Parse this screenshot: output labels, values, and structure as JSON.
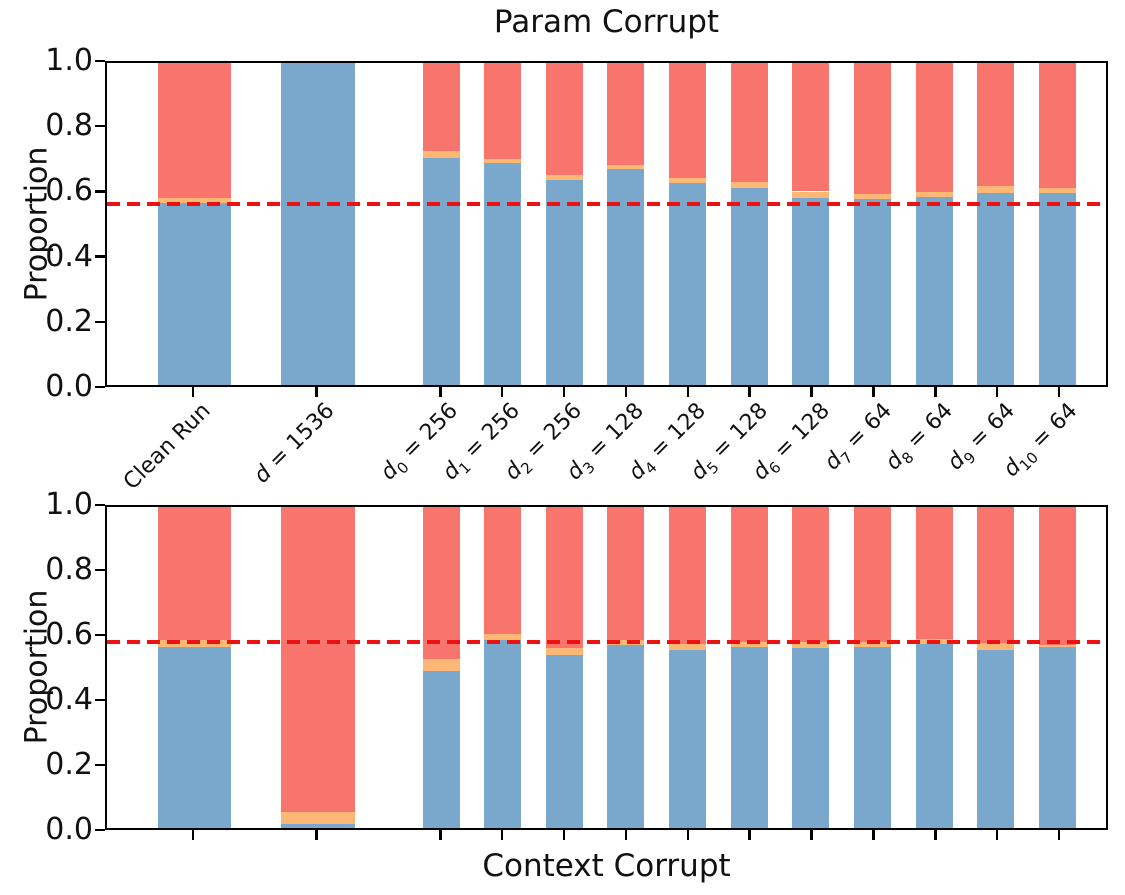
{
  "figure_bg": "#ffffff",
  "colors": {
    "blue": "#7aa7cc",
    "orange": "#fdb876",
    "red": "#f7756c",
    "dashed_line": "#ee1111",
    "axis": "#000000"
  },
  "chart_data": [
    {
      "type": "bar",
      "stacked": true,
      "title": "Param Corrupt",
      "xlabel": "",
      "ylabel": "Proportion",
      "ylim": [
        0.0,
        1.0
      ],
      "yticks": [
        "0.0",
        "0.2",
        "0.4",
        "0.6",
        "0.8",
        "1.0"
      ],
      "grid": false,
      "legend": "none",
      "categories": [
        {
          "label": "Clean Run"
        },
        {
          "var": "d",
          "sub": "",
          "value": "1536"
        },
        {
          "var": "d",
          "sub": "0",
          "value": "256"
        },
        {
          "var": "d",
          "sub": "1",
          "value": "256"
        },
        {
          "var": "d",
          "sub": "2",
          "value": "256"
        },
        {
          "var": "d",
          "sub": "3",
          "value": "128"
        },
        {
          "var": "d",
          "sub": "4",
          "value": "128"
        },
        {
          "var": "d",
          "sub": "5",
          "value": "128"
        },
        {
          "var": "d",
          "sub": "6",
          "value": "128"
        },
        {
          "var": "d",
          "sub": "7",
          "value": "64"
        },
        {
          "var": "d",
          "sub": "8",
          "value": "64"
        },
        {
          "var": "d",
          "sub": "9",
          "value": "64"
        },
        {
          "var": "d",
          "sub": "10",
          "value": "64"
        }
      ],
      "x_slots": [
        0,
        2,
        4,
        5,
        6,
        7,
        8,
        9,
        10,
        11,
        12,
        13,
        14
      ],
      "bar_width_slots": [
        1.2,
        1.2,
        0.6,
        0.6,
        0.6,
        0.6,
        0.6,
        0.6,
        0.6,
        0.6,
        0.6,
        0.6,
        0.6
      ],
      "series": [
        {
          "name": "blue",
          "color": "#7aa7cc",
          "values": [
            0.565,
            1.0,
            0.705,
            0.688,
            0.638,
            0.672,
            0.626,
            0.613,
            0.58,
            0.577,
            0.583,
            0.595,
            0.596
          ]
        },
        {
          "name": "orange",
          "color": "#fdb876",
          "values": [
            0.015,
            0.0,
            0.022,
            0.014,
            0.015,
            0.012,
            0.018,
            0.016,
            0.021,
            0.015,
            0.015,
            0.022,
            0.017
          ]
        },
        {
          "name": "red",
          "color": "#f7756c",
          "values": [
            0.42,
            0.0,
            0.273,
            0.298,
            0.347,
            0.316,
            0.356,
            0.371,
            0.399,
            0.408,
            0.402,
            0.383,
            0.387
          ]
        }
      ],
      "dashed_line": {
        "value": 0.562,
        "color": "#ee1111",
        "style": "dashed"
      },
      "show_xtick_labels": true
    },
    {
      "type": "bar",
      "stacked": true,
      "title": "",
      "xlabel": "Context Corrupt",
      "ylabel": "Proportion",
      "ylim": [
        0.0,
        1.0
      ],
      "yticks": [
        "0.0",
        "0.2",
        "0.4",
        "0.6",
        "0.8",
        "1.0"
      ],
      "grid": false,
      "legend": "none",
      "categories": [
        {
          "label": "Clean Run"
        },
        {
          "var": "d",
          "sub": "",
          "value": "1536"
        },
        {
          "var": "d",
          "sub": "0",
          "value": "256"
        },
        {
          "var": "d",
          "sub": "1",
          "value": "256"
        },
        {
          "var": "d",
          "sub": "2",
          "value": "256"
        },
        {
          "var": "d",
          "sub": "3",
          "value": "128"
        },
        {
          "var": "d",
          "sub": "4",
          "value": "128"
        },
        {
          "var": "d",
          "sub": "5",
          "value": "128"
        },
        {
          "var": "d",
          "sub": "6",
          "value": "128"
        },
        {
          "var": "d",
          "sub": "7",
          "value": "64"
        },
        {
          "var": "d",
          "sub": "8",
          "value": "64"
        },
        {
          "var": "d",
          "sub": "9",
          "value": "64"
        },
        {
          "var": "d",
          "sub": "10",
          "value": "64"
        }
      ],
      "x_slots": [
        0,
        2,
        4,
        5,
        6,
        7,
        8,
        9,
        10,
        11,
        12,
        13,
        14
      ],
      "bar_width_slots": [
        1.2,
        1.2,
        0.6,
        0.6,
        0.6,
        0.6,
        0.6,
        0.6,
        0.6,
        0.6,
        0.6,
        0.6,
        0.6
      ],
      "series": [
        {
          "name": "blue",
          "color": "#7aa7cc",
          "values": [
            0.563,
            0.012,
            0.49,
            0.585,
            0.538,
            0.569,
            0.555,
            0.563,
            0.56,
            0.563,
            0.572,
            0.554,
            0.563
          ]
        },
        {
          "name": "orange",
          "color": "#fdb876",
          "values": [
            0.022,
            0.038,
            0.035,
            0.02,
            0.022,
            0.016,
            0.018,
            0.015,
            0.018,
            0.015,
            0.016,
            0.021,
            0.008
          ]
        },
        {
          "name": "red",
          "color": "#f7756c",
          "values": [
            0.415,
            0.95,
            0.475,
            0.395,
            0.44,
            0.415,
            0.427,
            0.422,
            0.422,
            0.422,
            0.412,
            0.425,
            0.429
          ]
        }
      ],
      "dashed_line": {
        "value": 0.58,
        "color": "#ee1111",
        "style": "dashed"
      },
      "show_xtick_labels": false
    }
  ]
}
